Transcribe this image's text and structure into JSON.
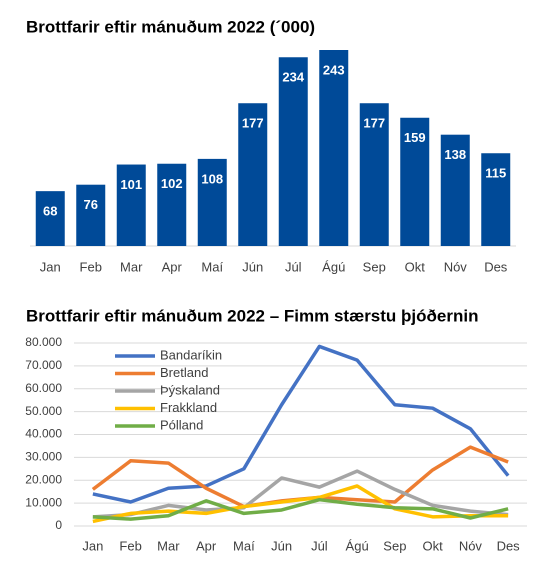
{
  "chart_data": [
    {
      "type": "bar",
      "title": "Brottfarir eftir mánuðum 2022 (´000)",
      "categories": [
        "Jan",
        "Feb",
        "Mar",
        "Apr",
        "Maí",
        "Jún",
        "Júl",
        "Ágú",
        "Sep",
        "Okt",
        "Nóv",
        "Des"
      ],
      "values": [
        68,
        76,
        101,
        102,
        108,
        177,
        234,
        243,
        177,
        159,
        138,
        115
      ],
      "color": "#004a98"
    },
    {
      "type": "line",
      "title": "Brottfarir eftir mánuðum 2022 – Fimm stærstu þjóðernin",
      "categories": [
        "Jan",
        "Feb",
        "Mar",
        "Apr",
        "Maí",
        "Jún",
        "Júl",
        "Ágú",
        "Sep",
        "Okt",
        "Nóv",
        "Des"
      ],
      "ylim": [
        0,
        80000
      ],
      "yticks": [
        0,
        {
          "value": 10000,
          "label": "10.000"
        },
        {
          "value": 20000,
          "label": "20.000"
        },
        {
          "value": 30000,
          "label": "30.000"
        },
        {
          "value": 40000,
          "label": "40.000"
        },
        {
          "value": 50000,
          "label": "50.000"
        },
        {
          "value": 60000,
          "label": "60.000"
        },
        {
          "value": 70000,
          "label": "70.000"
        },
        {
          "value": 80000,
          "label": "80.000"
        }
      ],
      "grid": true,
      "legend": "top-left",
      "series": [
        {
          "name": "Bandaríkin",
          "color": "#4472c4",
          "values": [
            14000,
            10500,
            16500,
            17500,
            25000,
            53000,
            78500,
            72500,
            53000,
            51500,
            42500,
            22000
          ]
        },
        {
          "name": "Bretland",
          "color": "#ed7d31",
          "values": [
            16000,
            28500,
            27500,
            16500,
            8500,
            11000,
            12500,
            11500,
            10500,
            24500,
            34500,
            28000
          ]
        },
        {
          "name": "Þýskaland",
          "color": "#a5a5a5",
          "values": [
            4000,
            5000,
            9000,
            7000,
            8000,
            21000,
            17000,
            24000,
            16000,
            9000,
            6500,
            5000
          ]
        },
        {
          "name": "Frakkland",
          "color": "#ffc000",
          "values": [
            2000,
            5500,
            6500,
            5500,
            8500,
            10500,
            12500,
            17500,
            7500,
            4000,
            4500,
            4500
          ]
        },
        {
          "name": "Pólland",
          "color": "#70ad47",
          "values": [
            4000,
            3000,
            4500,
            11000,
            5500,
            7000,
            11500,
            9500,
            8000,
            7500,
            3500,
            7500
          ]
        }
      ]
    }
  ]
}
